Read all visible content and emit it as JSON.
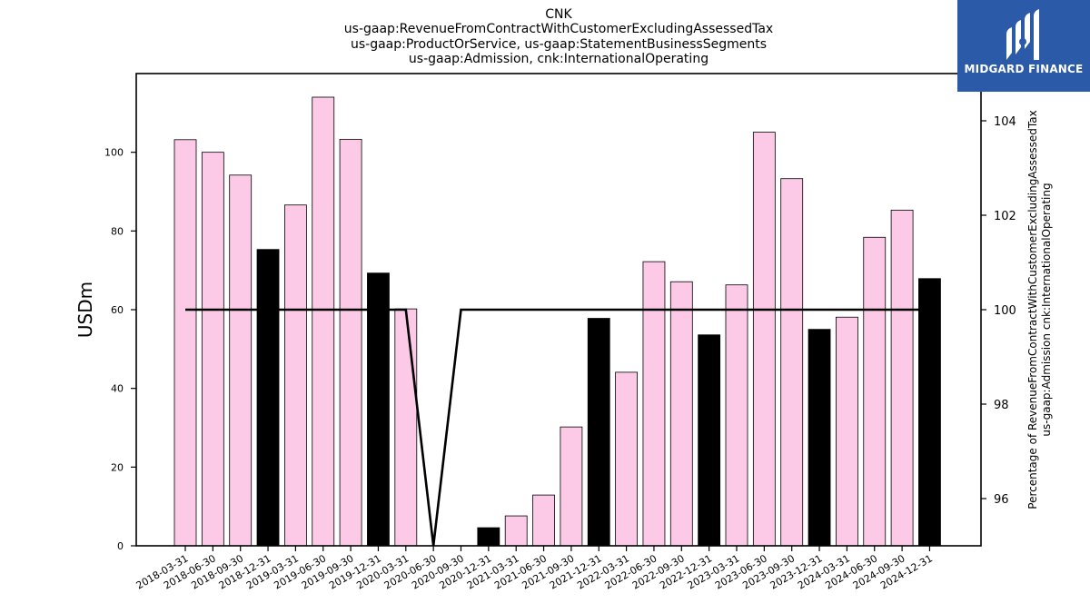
{
  "chart_data": {
    "type": "bar",
    "title": [
      "CNK",
      "us-gaap:RevenueFromContractWithCustomerExcludingAssessedTax",
      "us-gaap:ProductOrService, us-gaap:StatementBusinessSegments",
      "us-gaap:Admission, cnk:InternationalOperating"
    ],
    "ylabel": "USDm",
    "y2label": [
      "Percentage of RevenueFromContractWithCustomerExcludingAssessedTax",
      "us-gaap:Admission cnk:InternationalOperating"
    ],
    "ylim": [
      0,
      120
    ],
    "y2lim": [
      95,
      105
    ],
    "yticks": [
      0,
      20,
      40,
      60,
      80,
      100
    ],
    "y2ticks": [
      96,
      98,
      100,
      102,
      104
    ],
    "categories": [
      "2018-03-31",
      "2018-06-30",
      "2018-09-30",
      "2018-12-31",
      "2019-03-31",
      "2019-06-30",
      "2019-09-30",
      "2019-12-31",
      "2020-03-31",
      "2020-06-30",
      "2020-09-30",
      "2020-12-31",
      "2021-03-31",
      "2021-06-30",
      "2021-09-30",
      "2021-12-31",
      "2022-03-31",
      "2022-06-30",
      "2022-09-30",
      "2022-12-31",
      "2023-03-31",
      "2023-06-30",
      "2023-09-30",
      "2023-12-31",
      "2024-03-31",
      "2024-06-30",
      "2024-09-30",
      "2024-12-31"
    ],
    "series": [
      {
        "values": [
          103.2,
          100.0,
          94.2,
          75.3,
          86.6,
          114.0,
          103.3,
          69.3,
          60.2,
          0,
          0,
          4.6,
          7.6,
          12.9,
          30.2,
          57.8,
          44.1,
          72.2,
          67.1,
          53.6,
          66.3,
          105.1,
          93.3,
          55.0,
          58.1,
          78.4,
          85.3,
          67.9
        ],
        "highlight": [
          false,
          false,
          false,
          true,
          false,
          false,
          false,
          true,
          false,
          false,
          false,
          true,
          false,
          false,
          false,
          true,
          false,
          false,
          false,
          true,
          false,
          false,
          false,
          true,
          false,
          false,
          false,
          true
        ]
      },
      {
        "axis": "right",
        "type": "line",
        "values": [
          100,
          100,
          100,
          100,
          100,
          100,
          100,
          100,
          100,
          95,
          100,
          100,
          100,
          100,
          100,
          100,
          100,
          100,
          100,
          100,
          100,
          100,
          100,
          100,
          100,
          100,
          100,
          100
        ]
      }
    ],
    "colors": {
      "bar": "#fccae6",
      "bar_highlight": "#000000",
      "line": "#000000"
    },
    "grid": false
  },
  "logo": {
    "text": "MIDGARD FINANCE",
    "color": "#2b5aa8"
  }
}
